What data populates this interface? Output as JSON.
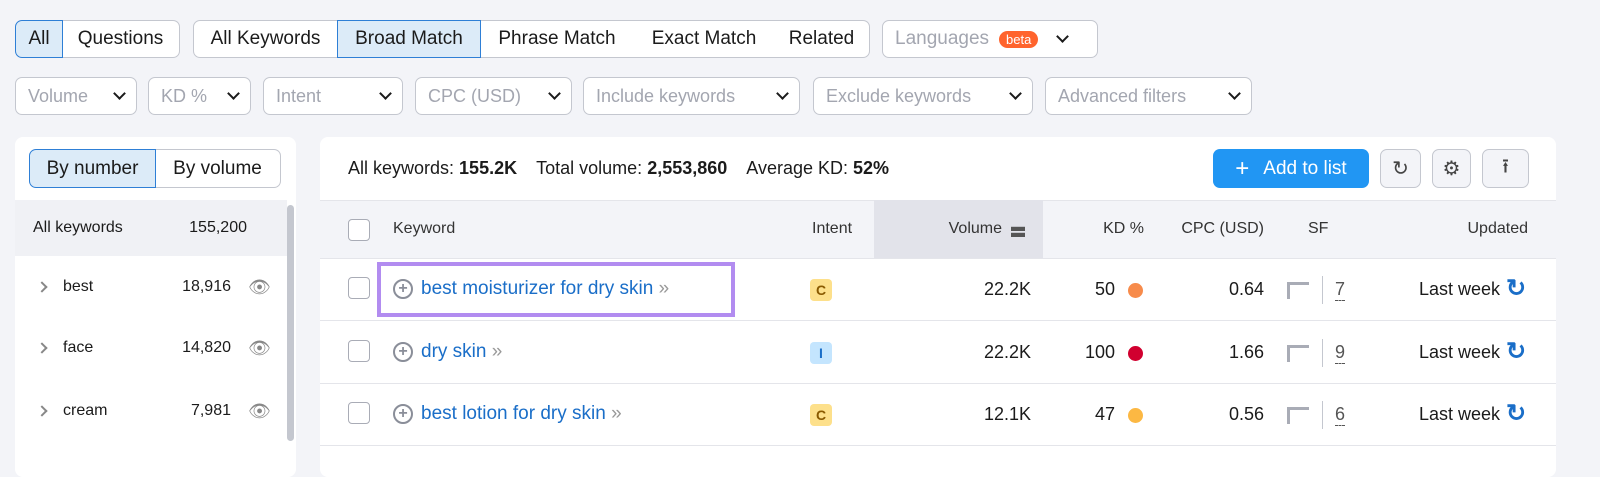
{
  "filters_row1": {
    "scope": [
      {
        "label": "All",
        "active": true
      },
      {
        "label": "Questions",
        "active": false
      }
    ],
    "match": [
      {
        "label": "All Keywords",
        "active": false
      },
      {
        "label": "Broad Match",
        "active": true
      },
      {
        "label": "Phrase Match",
        "active": false
      },
      {
        "label": "Exact Match",
        "active": false
      },
      {
        "label": "Related",
        "active": false
      }
    ],
    "languages": {
      "label": "Languages",
      "badge": "beta"
    }
  },
  "filters_row2": [
    "Volume",
    "KD %",
    "Intent",
    "CPC (USD)",
    "Include keywords",
    "Exclude keywords",
    "Advanced filters"
  ],
  "sidebar": {
    "toggle": [
      "By number",
      "By volume"
    ],
    "all": {
      "label": "All keywords",
      "count": "155,200"
    },
    "groups": [
      {
        "label": "best",
        "count": "18,916"
      },
      {
        "label": "face",
        "count": "14,820"
      },
      {
        "label": "cream",
        "count": "7,981"
      }
    ]
  },
  "summary": {
    "all_label": "All keywords:",
    "all_value": "155.2K",
    "vol_label": "Total volume:",
    "vol_value": "2,553,860",
    "kd_label": "Average KD:",
    "kd_value": "52%"
  },
  "toolbar": {
    "add_label": "Add to list"
  },
  "table": {
    "headers": [
      "Keyword",
      "Intent",
      "Volume",
      "KD %",
      "CPC (USD)",
      "SF",
      "Updated"
    ],
    "rows": [
      {
        "keyword": "best moisturizer for dry skin",
        "intent": "C",
        "volume": "22.2K",
        "kd": "50",
        "kd_color": "#f78b4b",
        "cpc": "0.64",
        "sf": "7",
        "updated": "Last week",
        "highlighted": true
      },
      {
        "keyword": "dry skin",
        "intent": "I",
        "volume": "22.2K",
        "kd": "100",
        "kd_color": "#d1002f",
        "cpc": "1.66",
        "sf": "9",
        "updated": "Last week",
        "highlighted": false
      },
      {
        "keyword": "best lotion for dry skin",
        "intent": "C",
        "volume": "12.1K",
        "kd": "47",
        "kd_color": "#fcb843",
        "cpc": "0.56",
        "sf": "6",
        "updated": "Last week",
        "highlighted": false
      }
    ]
  },
  "colors": {
    "accent": "#2196f3",
    "link": "#1a6ec8",
    "highlight": "#b28cf0",
    "commercial": "#fde08b",
    "informational": "#c4e5fe"
  }
}
